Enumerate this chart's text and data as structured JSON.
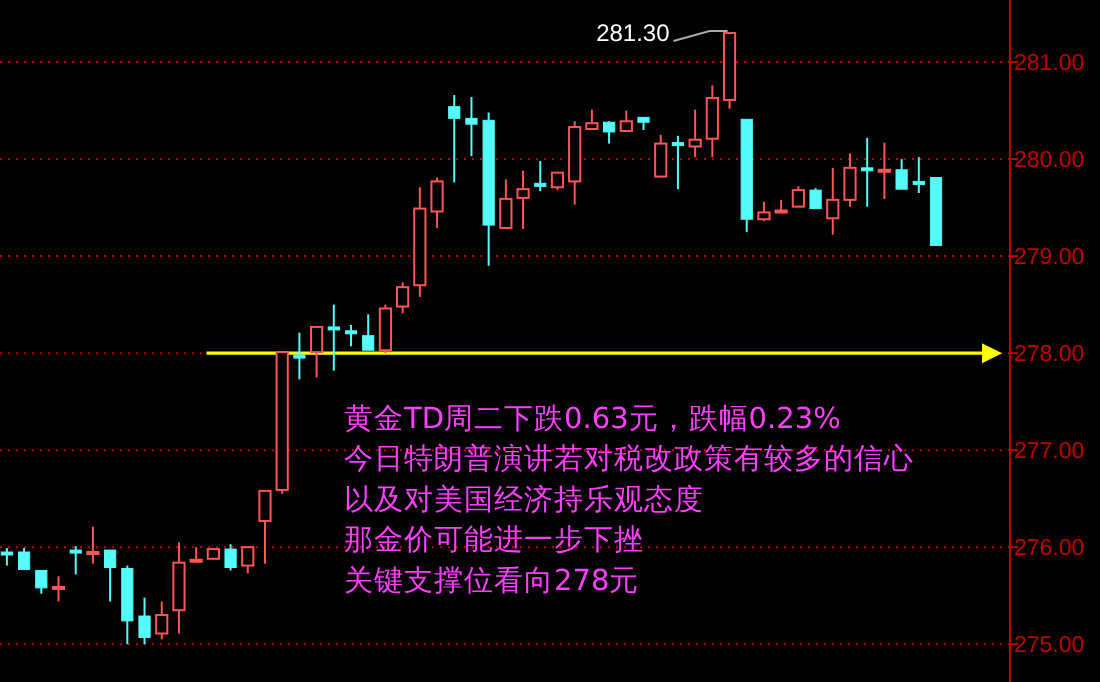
{
  "chart_data": {
    "type": "candlestick",
    "categories": [
      null,
      null,
      null,
      null,
      null,
      null,
      null,
      null,
      null,
      null,
      null,
      null,
      null,
      null,
      null,
      null,
      null,
      null,
      null,
      null,
      null,
      null,
      null,
      null,
      null,
      null,
      null,
      null,
      null,
      null,
      null,
      null,
      null,
      null,
      null,
      null,
      null,
      null,
      null,
      null,
      null,
      null,
      null,
      null,
      null,
      null,
      null,
      null,
      null,
      null,
      null,
      null,
      null,
      null,
      null
    ],
    "ohlc": [
      [
        275.95,
        275.99,
        275.81,
        275.94
      ],
      [
        275.95,
        275.99,
        275.77,
        275.77
      ],
      [
        275.76,
        275.76,
        275.52,
        275.58
      ],
      [
        275.58,
        275.7,
        275.44,
        275.59
      ],
      [
        275.97,
        276.01,
        275.72,
        275.95
      ],
      [
        275.94,
        276.21,
        275.83,
        275.95
      ],
      [
        275.97,
        275.97,
        275.44,
        275.79
      ],
      [
        275.78,
        275.81,
        275.0,
        275.24
      ],
      [
        275.29,
        275.48,
        275.0,
        275.07
      ],
      [
        275.11,
        275.44,
        275.05,
        275.3
      ],
      [
        275.35,
        276.05,
        275.11,
        275.84
      ],
      [
        275.86,
        276.0,
        275.86,
        275.87
      ],
      [
        275.88,
        275.98,
        275.88,
        275.98
      ],
      [
        275.98,
        276.03,
        275.76,
        275.79
      ],
      [
        275.81,
        276.0,
        275.73,
        276.0
      ],
      [
        276.27,
        276.58,
        275.83,
        276.58
      ],
      [
        276.59,
        278.01,
        276.55,
        278.01
      ],
      [
        277.98,
        278.21,
        277.73,
        277.96
      ],
      [
        278.01,
        278.27,
        277.75,
        278.27
      ],
      [
        278.27,
        278.5,
        277.82,
        278.25
      ],
      [
        278.23,
        278.29,
        278.07,
        278.21
      ],
      [
        278.18,
        278.4,
        278.03,
        278.03
      ],
      [
        278.03,
        278.5,
        278.0,
        278.46
      ],
      [
        278.48,
        278.73,
        278.41,
        278.68
      ],
      [
        278.7,
        279.71,
        278.58,
        279.49
      ],
      [
        279.46,
        279.81,
        279.29,
        279.77
      ],
      [
        280.54,
        280.66,
        279.76,
        280.42
      ],
      [
        280.42,
        280.64,
        280.03,
        280.36
      ],
      [
        280.4,
        280.48,
        278.9,
        279.32
      ],
      [
        279.29,
        279.79,
        279.29,
        279.59
      ],
      [
        279.6,
        279.88,
        279.28,
        279.69
      ],
      [
        279.75,
        279.98,
        279.67,
        279.72
      ],
      [
        279.71,
        279.86,
        279.68,
        279.86
      ],
      [
        279.77,
        280.39,
        279.53,
        280.33
      ],
      [
        280.31,
        280.51,
        280.31,
        280.37
      ],
      [
        280.38,
        280.39,
        280.16,
        280.28
      ],
      [
        280.29,
        280.5,
        280.29,
        280.39
      ],
      [
        280.43,
        280.43,
        280.3,
        280.38
      ],
      [
        279.82,
        280.25,
        279.82,
        280.16
      ],
      [
        280.17,
        280.24,
        279.69,
        280.15
      ],
      [
        280.13,
        280.51,
        280.02,
        280.2
      ],
      [
        280.21,
        280.76,
        280.02,
        280.63
      ],
      [
        280.61,
        281.3,
        280.52,
        281.3
      ],
      [
        280.41,
        280.41,
        279.25,
        279.38
      ],
      [
        279.38,
        279.56,
        279.36,
        279.45
      ],
      [
        279.46,
        279.58,
        279.45,
        279.47
      ],
      [
        279.51,
        279.72,
        279.51,
        279.68
      ],
      [
        279.68,
        279.7,
        279.49,
        279.49
      ],
      [
        279.39,
        279.91,
        279.22,
        279.58
      ],
      [
        279.58,
        280.06,
        279.51,
        279.91
      ],
      [
        279.91,
        280.22,
        279.51,
        279.89
      ],
      [
        279.88,
        280.17,
        279.59,
        279.89
      ],
      [
        279.89,
        280.0,
        279.69,
        279.69
      ],
      [
        279.77,
        280.02,
        279.65,
        279.75
      ],
      [
        279.81,
        279.81,
        279.11,
        279.11
      ]
    ],
    "ylim": [
      274.61,
      281.64
    ],
    "yticks": [
      {
        "value": 275,
        "label": "275.00"
      },
      {
        "value": 276,
        "label": "276.00"
      },
      {
        "value": 277,
        "label": "277.00"
      },
      {
        "value": 278,
        "label": "278.00"
      },
      {
        "value": 279,
        "label": "279.00"
      },
      {
        "value": 280,
        "label": "280.00"
      },
      {
        "value": 281,
        "label": "281.00"
      }
    ],
    "grid": "y",
    "ref_lines": [
      {
        "axis": "y",
        "value": 278,
        "color": "#ffff00"
      }
    ],
    "annotations": [
      "281.30",
      "黄金TD周二下跌0.63元，跌幅0.23%",
      "今日特朗普演讲若对税改政策有较多的信心",
      "以及对美国经济持乐观态度",
      "那金价可能进一步下挫",
      "关键支撑位看向278元"
    ]
  }
}
